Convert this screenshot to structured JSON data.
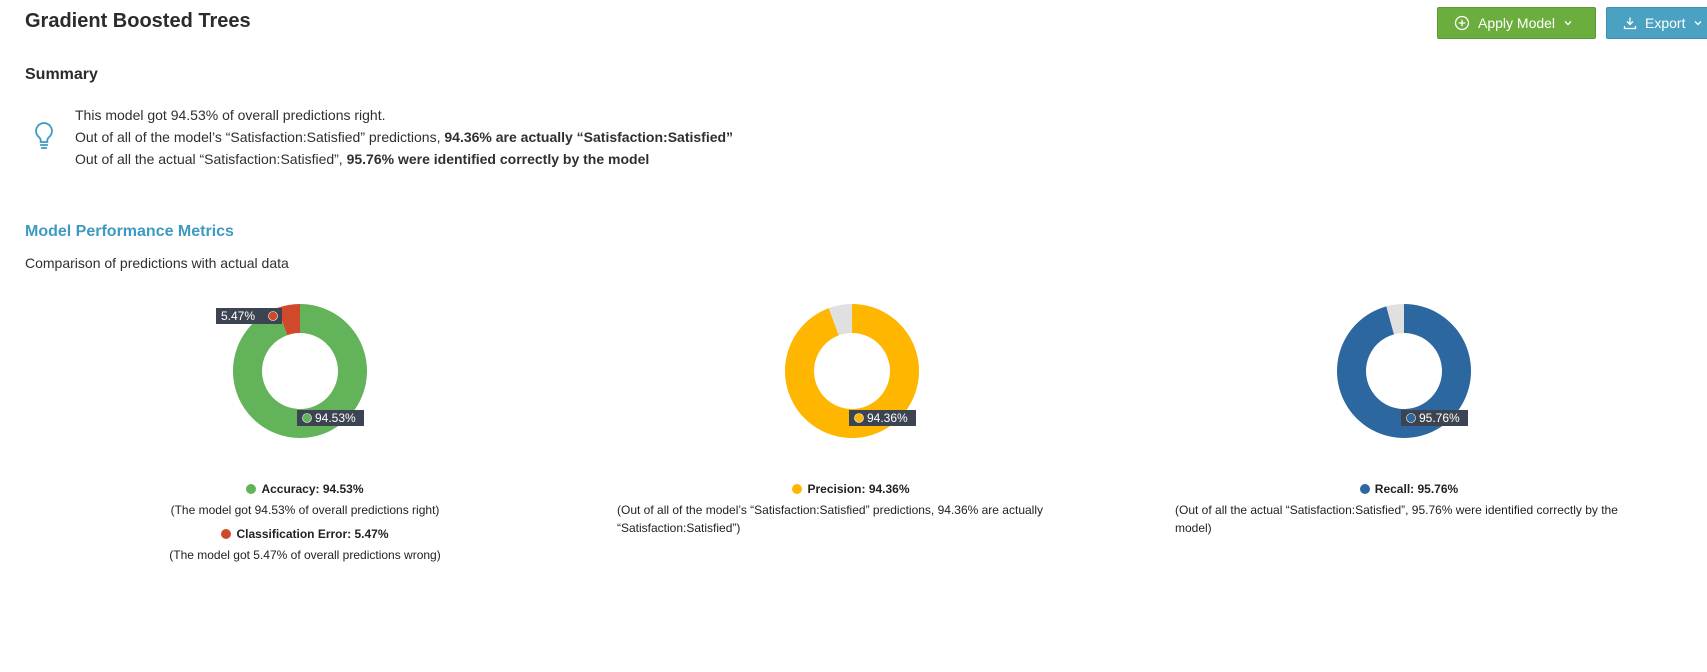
{
  "header": {
    "title": "Gradient Boosted Trees",
    "apply_label": "Apply Model",
    "export_label": "Export"
  },
  "summary": {
    "heading": "Summary",
    "line1": "This model got 94.53% of overall predictions right.",
    "line2_prefix": "Out of all of the model’s “Satisfaction:Satisfied” predictions, ",
    "line2_bold": "94.36% are actually “Satisfaction:Satisfied”",
    "line3_prefix": "Out of all the actual “Satisfaction:Satisfied”, ",
    "line3_bold": "95.76% were identified correctly by the model"
  },
  "metrics": {
    "heading": "Model Performance Metrics",
    "subtitle": "Comparison of predictions with actual data"
  },
  "colors": {
    "accuracy": "#62b35a",
    "error": "#d0492a",
    "precision": "#ffb600",
    "recall": "#2c679f",
    "remainder": "#e0e0e0",
    "label_bg": "#3d4451",
    "apply_button": "#6cae3e",
    "export_button": "#4ba1c2",
    "metrics_heading": "#3d9bc1"
  },
  "icons": {
    "apply": "plus-circle-icon",
    "export": "download-icon",
    "summary": "lightbulb-icon"
  },
  "chart_data": [
    {
      "type": "pie",
      "series": [
        {
          "name": "Accuracy",
          "value": 94.53
        },
        {
          "name": "Classification Error",
          "value": 5.47
        }
      ],
      "labels": {
        "main": "94.53%",
        "secondary": "5.47%"
      },
      "legend": [
        {
          "title": "Accuracy: 94.53%",
          "desc": "(The model got 94.53% of overall predictions right)"
        },
        {
          "title": "Classification Error: 5.47%",
          "desc": "(The model got 5.47% of overall predictions wrong)"
        }
      ]
    },
    {
      "type": "pie",
      "series": [
        {
          "name": "Precision",
          "value": 94.36
        },
        {
          "value": 5.64
        }
      ],
      "labels": {
        "main": "94.36%"
      },
      "legend": [
        {
          "title": "Precision: 94.36%",
          "desc": "(Out of all of the model’s “Satisfaction:Satisfied” predictions, 94.36% are actually “Satisfaction:Satisfied”)"
        }
      ]
    },
    {
      "type": "pie",
      "series": [
        {
          "name": "Recall",
          "value": 95.76
        },
        {
          "value": 4.24
        }
      ],
      "labels": {
        "main": "95.76%"
      },
      "legend": [
        {
          "title": "Recall: 95.76%",
          "desc": "(Out of all the actual “Satisfaction:Satisfied”, 95.76% were identified correctly by the model)"
        }
      ]
    }
  ]
}
